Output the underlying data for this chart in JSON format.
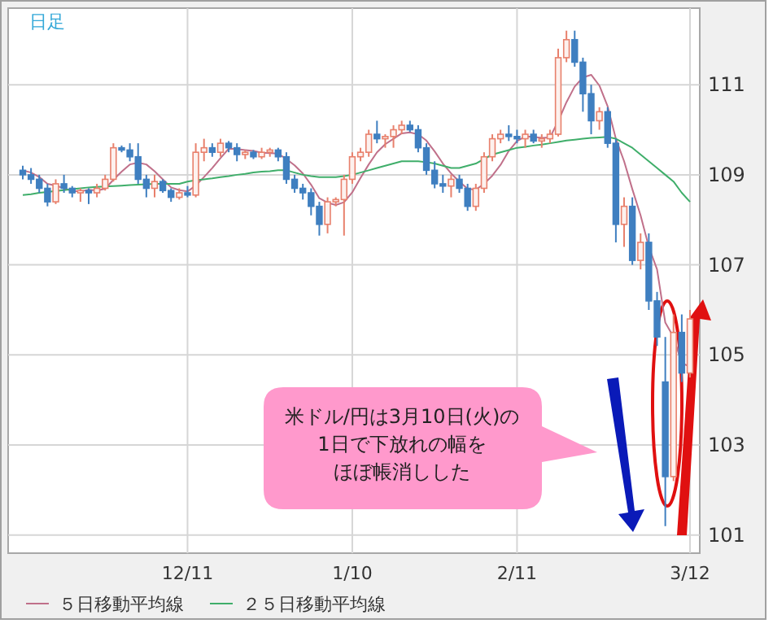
{
  "chart_data": {
    "type": "candlestick",
    "categories": [
      null,
      null,
      null,
      null,
      null,
      null,
      null,
      null,
      null,
      null,
      null,
      null,
      null,
      null,
      null,
      null,
      null,
      null,
      null,
      null,
      "12/11",
      null,
      null,
      null,
      null,
      null,
      null,
      null,
      null,
      null,
      null,
      null,
      null,
      null,
      null,
      null,
      null,
      null,
      null,
      null,
      "1/10",
      null,
      null,
      null,
      null,
      null,
      null,
      null,
      null,
      null,
      null,
      null,
      null,
      null,
      null,
      null,
      null,
      null,
      null,
      null,
      "2/11",
      null,
      null,
      null,
      null,
      null,
      null,
      null,
      null,
      null,
      null,
      null,
      null,
      null,
      null,
      null,
      null,
      null,
      null,
      null,
      null,
      "3/12"
    ],
    "ylim": [
      100.6,
      112.7
    ],
    "yticks": [
      101,
      103,
      105,
      107,
      109,
      111
    ],
    "grid": true,
    "legend": "bottom",
    "annotations": [
      "日足",
      "米ドル/円は3月10日(火)の",
      "1日で下放れの幅を",
      "ほぼ帳消しした"
    ],
    "series": [
      {
        "ohlc": [
          [
            109.1,
            109.2,
            108.9,
            109.0
          ],
          [
            109.0,
            109.15,
            108.8,
            108.9
          ],
          [
            108.9,
            109.0,
            108.6,
            108.7
          ],
          [
            108.7,
            108.8,
            108.3,
            108.4
          ],
          [
            108.4,
            108.9,
            108.35,
            108.8
          ],
          [
            108.8,
            109.0,
            108.6,
            108.7
          ],
          [
            108.7,
            108.75,
            108.5,
            108.6
          ],
          [
            108.6,
            108.7,
            108.4,
            108.65
          ],
          [
            108.65,
            108.7,
            108.35,
            108.6
          ],
          [
            108.6,
            108.8,
            108.5,
            108.7
          ],
          [
            108.7,
            109.0,
            108.65,
            108.9
          ],
          [
            108.9,
            109.7,
            108.85,
            109.6
          ],
          [
            109.6,
            109.65,
            109.5,
            109.55
          ],
          [
            109.55,
            109.7,
            109.3,
            109.4
          ],
          [
            109.4,
            109.7,
            108.8,
            108.9
          ],
          [
            108.9,
            109.0,
            108.5,
            108.7
          ],
          [
            108.7,
            109.0,
            108.5,
            108.85
          ],
          [
            108.85,
            108.9,
            108.6,
            108.65
          ],
          [
            108.65,
            108.7,
            108.4,
            108.5
          ],
          [
            108.5,
            108.7,
            108.45,
            108.6
          ],
          [
            108.6,
            108.75,
            108.5,
            108.55
          ],
          [
            108.55,
            109.7,
            108.5,
            109.5
          ],
          [
            109.5,
            109.8,
            109.3,
            109.6
          ],
          [
            109.6,
            109.7,
            109.4,
            109.5
          ],
          [
            109.5,
            109.8,
            109.4,
            109.7
          ],
          [
            109.7,
            109.75,
            109.5,
            109.6
          ],
          [
            109.6,
            109.7,
            109.3,
            109.45
          ],
          [
            109.45,
            109.55,
            109.35,
            109.5
          ],
          [
            109.5,
            109.55,
            109.35,
            109.4
          ],
          [
            109.4,
            109.6,
            109.35,
            109.5
          ],
          [
            109.5,
            109.6,
            109.4,
            109.55
          ],
          [
            109.55,
            109.6,
            109.3,
            109.4
          ],
          [
            109.4,
            109.5,
            108.8,
            108.9
          ],
          [
            108.9,
            109.0,
            108.6,
            108.7
          ],
          [
            108.7,
            108.8,
            108.45,
            108.6
          ],
          [
            108.6,
            108.7,
            108.1,
            108.3
          ],
          [
            108.3,
            108.4,
            107.65,
            107.9
          ],
          [
            107.9,
            108.5,
            107.7,
            108.4
          ],
          [
            108.4,
            108.5,
            108.3,
            108.45
          ],
          [
            108.45,
            109.0,
            107.65,
            108.9
          ],
          [
            108.9,
            109.5,
            108.8,
            109.4
          ],
          [
            109.4,
            109.6,
            109.3,
            109.5
          ],
          [
            109.5,
            110.0,
            109.4,
            109.9
          ],
          [
            109.9,
            110.2,
            109.7,
            109.8
          ],
          [
            109.8,
            109.9,
            109.6,
            109.85
          ],
          [
            109.85,
            110.1,
            109.6,
            110.0
          ],
          [
            110.0,
            110.2,
            109.9,
            110.1
          ],
          [
            110.1,
            110.2,
            109.95,
            110.0
          ],
          [
            110.0,
            110.1,
            109.5,
            109.6
          ],
          [
            109.6,
            109.7,
            109.0,
            109.1
          ],
          [
            109.1,
            109.3,
            108.7,
            108.8
          ],
          [
            108.8,
            109.0,
            108.6,
            108.75
          ],
          [
            108.75,
            109.0,
            108.5,
            108.9
          ],
          [
            108.9,
            109.0,
            108.6,
            108.7
          ],
          [
            108.7,
            108.8,
            108.2,
            108.3
          ],
          [
            108.3,
            108.8,
            108.2,
            108.7
          ],
          [
            108.7,
            109.5,
            108.6,
            109.4
          ],
          [
            109.4,
            109.9,
            109.3,
            109.8
          ],
          [
            109.8,
            110.0,
            109.7,
            109.9
          ],
          [
            109.9,
            110.1,
            109.75,
            109.85
          ],
          [
            109.85,
            110.0,
            109.7,
            109.8
          ],
          [
            109.8,
            110.0,
            109.6,
            109.9
          ],
          [
            109.9,
            110.0,
            109.7,
            109.75
          ],
          [
            109.75,
            109.9,
            109.6,
            109.8
          ],
          [
            109.8,
            110.0,
            109.7,
            109.9
          ],
          [
            109.9,
            111.8,
            109.85,
            111.6
          ],
          [
            111.6,
            112.2,
            111.5,
            112.0
          ],
          [
            112.0,
            112.2,
            111.4,
            111.5
          ],
          [
            111.5,
            111.6,
            110.4,
            110.8
          ],
          [
            110.8,
            111.0,
            109.9,
            110.2
          ],
          [
            110.2,
            110.5,
            110.0,
            110.4
          ],
          [
            110.4,
            110.5,
            109.6,
            109.7
          ],
          [
            109.7,
            109.8,
            107.5,
            107.9
          ],
          [
            107.9,
            108.5,
            107.4,
            108.3
          ],
          [
            108.3,
            108.5,
            107.0,
            107.1
          ],
          [
            107.1,
            107.7,
            106.9,
            107.5
          ],
          [
            107.5,
            107.7,
            106.0,
            106.2
          ],
          [
            106.2,
            106.4,
            105.2,
            105.4
          ],
          [
            104.4,
            105.4,
            101.2,
            102.3
          ],
          [
            102.3,
            105.9,
            102.2,
            105.5
          ],
          [
            105.5,
            105.9,
            104.4,
            104.6
          ],
          [
            104.6,
            106.0,
            104.5,
            105.8
          ]
        ],
        "colors": [
          "#3f7fc0",
          "#3f7fc0",
          "#3f7fc0",
          "#3f7fc0",
          "#e8806c",
          "#3f7fc0",
          "#3f7fc0",
          "#e8806c",
          "#3f7fc0",
          "#e8806c",
          "#e8806c",
          "#e8806c",
          "#3f7fc0",
          "#3f7fc0",
          "#3f7fc0",
          "#3f7fc0",
          "#e8806c",
          "#3f7fc0",
          "#3f7fc0",
          "#e8806c",
          "#3f7fc0",
          "#e8806c",
          "#e8806c",
          "#3f7fc0",
          "#e8806c",
          "#3f7fc0",
          "#3f7fc0",
          "#e8806c",
          "#3f7fc0",
          "#e8806c",
          "#e8806c",
          "#3f7fc0",
          "#3f7fc0",
          "#3f7fc0",
          "#3f7fc0",
          "#3f7fc0",
          "#3f7fc0",
          "#e8806c",
          "#e8806c",
          "#e8806c",
          "#e8806c",
          "#e8806c",
          "#e8806c",
          "#3f7fc0",
          "#e8806c",
          "#e8806c",
          "#e8806c",
          "#3f7fc0",
          "#3f7fc0",
          "#3f7fc0",
          "#3f7fc0",
          "#3f7fc0",
          "#e8806c",
          "#3f7fc0",
          "#3f7fc0",
          "#e8806c",
          "#e8806c",
          "#e8806c",
          "#e8806c",
          "#3f7fc0",
          "#3f7fc0",
          "#e8806c",
          "#3f7fc0",
          "#e8806c",
          "#e8806c",
          "#e8806c",
          "#e8806c",
          "#3f7fc0",
          "#3f7fc0",
          "#3f7fc0",
          "#e8806c",
          "#3f7fc0",
          "#3f7fc0",
          "#e8806c",
          "#3f7fc0",
          "#e8806c",
          "#3f7fc0",
          "#3f7fc0",
          "#3f7fc0",
          "#e8806c",
          "#3f7fc0",
          "#e8806c"
        ]
      },
      {
        "type": "line",
        "name": "５日移動平均線",
        "color": "#c0708a",
        "values": [
          109.1,
          109.05,
          108.95,
          108.8,
          108.76,
          108.7,
          108.64,
          108.63,
          108.67,
          108.65,
          108.69,
          108.89,
          109.07,
          109.23,
          109.27,
          109.23,
          109.08,
          108.9,
          108.72,
          108.66,
          108.63,
          108.76,
          108.95,
          109.15,
          109.37,
          109.58,
          109.57,
          109.55,
          109.53,
          109.49,
          109.48,
          109.47,
          109.35,
          109.21,
          109.03,
          108.78,
          108.48,
          108.38,
          108.33,
          108.39,
          108.61,
          108.93,
          109.23,
          109.5,
          109.68,
          109.8,
          109.92,
          109.94,
          109.9,
          109.76,
          109.52,
          109.25,
          109.03,
          108.85,
          108.69,
          108.67,
          108.8,
          108.98,
          109.22,
          109.53,
          109.75,
          109.85,
          109.84,
          109.82,
          109.83,
          110.19,
          110.61,
          110.96,
          111.16,
          111.22,
          110.98,
          110.52,
          109.8,
          109.3,
          108.68,
          108.1,
          107.4,
          106.9,
          105.72,
          105.4,
          104.82,
          104.74
        ]
      },
      {
        "type": "line",
        "name": "２５日移動平均線",
        "color": "#3fae6a",
        "values": [
          108.55,
          108.57,
          108.6,
          108.62,
          108.64,
          108.66,
          108.68,
          108.7,
          108.72,
          108.73,
          108.74,
          108.75,
          108.76,
          108.77,
          108.78,
          108.79,
          108.8,
          108.8,
          108.8,
          108.8,
          108.85,
          108.88,
          108.9,
          108.92,
          108.95,
          108.97,
          109.0,
          109.02,
          109.05,
          109.07,
          109.08,
          109.1,
          109.1,
          109.05,
          109.0,
          108.97,
          108.95,
          108.95,
          108.95,
          108.97,
          109.0,
          109.05,
          109.1,
          109.15,
          109.2,
          109.25,
          109.3,
          109.3,
          109.3,
          109.28,
          109.25,
          109.2,
          109.15,
          109.15,
          109.2,
          109.25,
          109.35,
          109.45,
          109.5,
          109.55,
          109.6,
          109.62,
          109.65,
          109.67,
          109.7,
          109.73,
          109.76,
          109.78,
          109.8,
          109.82,
          109.83,
          109.84,
          109.8,
          109.7,
          109.6,
          109.45,
          109.3,
          109.15,
          109.0,
          108.85,
          108.6,
          108.4
        ]
      }
    ]
  }
}
